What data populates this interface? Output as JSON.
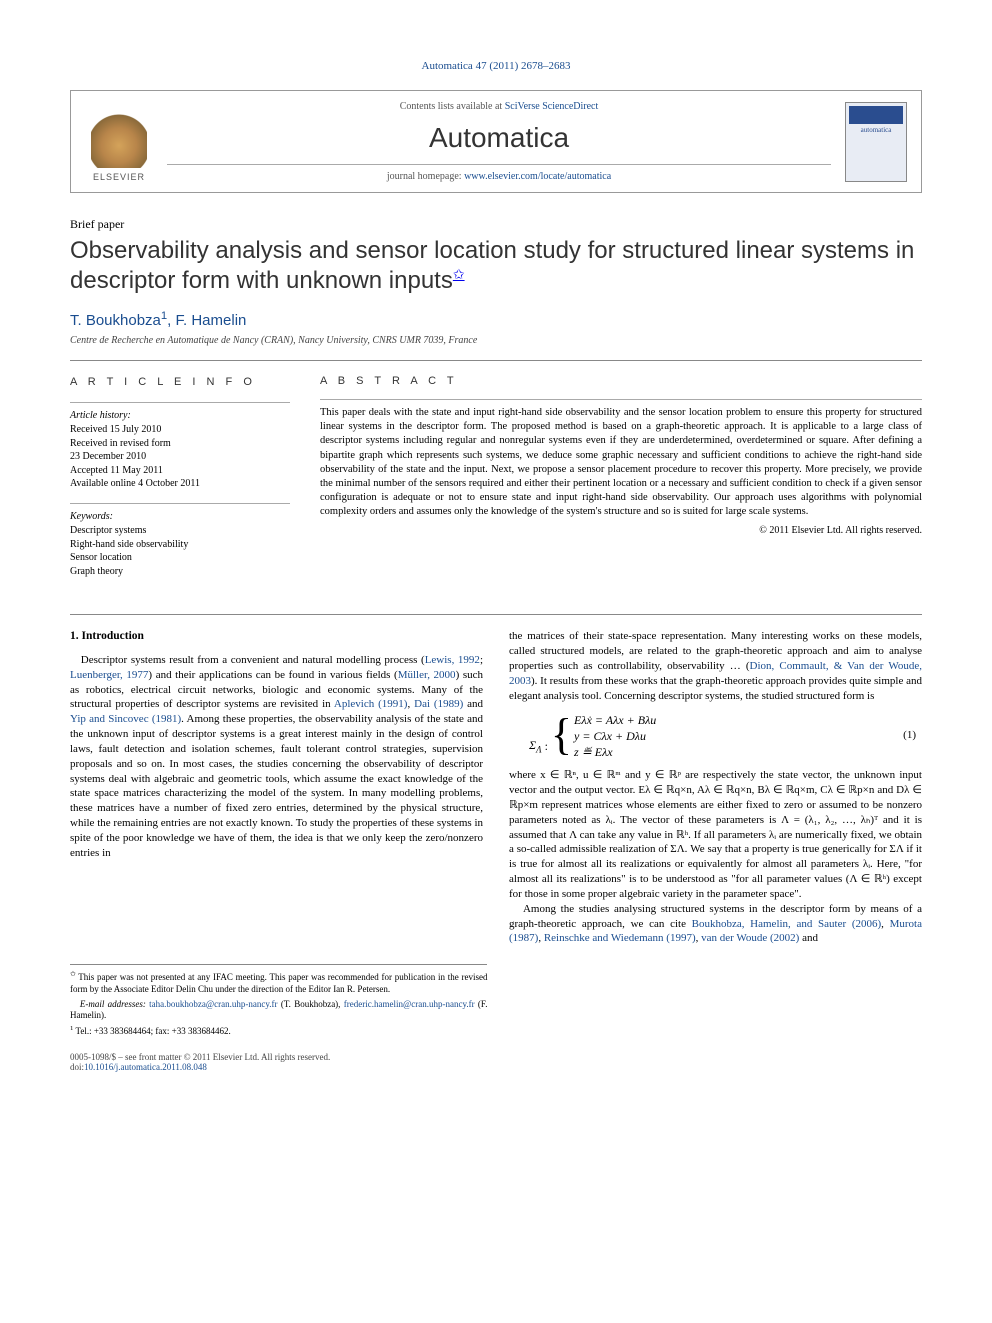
{
  "running_head": {
    "journal_link_text": "Automatica 47 (2011) 2678–2683",
    "journal_link_color": "#1a4d8f"
  },
  "header": {
    "elsevier_label": "ELSEVIER",
    "contents_prefix": "Contents lists available at ",
    "contents_link": "SciVerse ScienceDirect",
    "journal_name": "Automatica",
    "homepage_prefix": "journal homepage: ",
    "homepage_link": "www.elsevier.com/locate/automatica",
    "cover_title": "automatica"
  },
  "article": {
    "section_label": "Brief paper",
    "title": "Observability analysis and sensor location study for structured linear systems in descriptor form with unknown inputs",
    "title_marker": "✩",
    "authors_html": "T. Boukhobza",
    "author1": "T. Boukhobza",
    "author1_sup": "1",
    "author_sep": ", ",
    "author2": "F. Hamelin",
    "affiliation": "Centre de Recherche en Automatique de Nancy (CRAN), Nancy University, CNRS UMR 7039, France"
  },
  "info": {
    "heading": "A R T I C L E   I N F O",
    "history_label": "Article history:",
    "received": "Received 15 July 2010",
    "revised_label": "Received in revised form",
    "revised_date": "23 December 2010",
    "accepted": "Accepted 11 May 2011",
    "online": "Available online 4 October 2011",
    "keywords_label": "Keywords:",
    "kw1": "Descriptor systems",
    "kw2": "Right-hand side observability",
    "kw3": "Sensor location",
    "kw4": "Graph theory"
  },
  "abstract": {
    "heading": "A B S T R A C T",
    "text": "This paper deals with the state and input right-hand side observability and the sensor location problem to ensure this property for structured linear systems in the descriptor form. The proposed method is based on a graph-theoretic approach. It is applicable to a large class of descriptor systems including regular and nonregular systems even if they are underdetermined, overdetermined or square. After defining a bipartite graph which represents such systems, we deduce some graphic necessary and sufficient conditions to achieve the right-hand side observability of the state and the input. Next, we propose a sensor placement procedure to recover this property. More precisely, we provide the minimal number of the sensors required and either their pertinent location or a necessary and sufficient condition to check if a given sensor configuration is adequate or not to ensure state and input right-hand side observability. Our approach uses algorithms with polynomial complexity orders and assumes only the knowledge of the system's structure and so is suited for large scale systems.",
    "copyright": "© 2011 Elsevier Ltd. All rights reserved."
  },
  "body": {
    "sec1_heading": "1. Introduction",
    "col1_p1a": "Descriptor systems result from a convenient and natural modelling process (",
    "ref_lewis": "Lewis, 1992",
    "sep1": "; ",
    "ref_luen": "Luenberger, 1977",
    "col1_p1b": ") and their applications can be found in various fields (",
    "ref_muller": "Müller, 2000",
    "col1_p1c": ") such as robotics, electrical circuit networks, biologic and economic systems. Many of the structural properties of descriptor systems are revisited in ",
    "ref_aplevich": "Aplevich (1991)",
    "sep_comma": ", ",
    "ref_dai": "Dai (1989)",
    "sep_and": " and ",
    "ref_yip": "Yip and Sincovec (1981)",
    "col1_p1d": ". Among these properties, the observability analysis of the state and the unknown input of descriptor systems is a great interest mainly in the design of control laws, fault detection and isolation schemes, fault tolerant control strategies, supervision proposals and so on. In most cases, the studies concerning the observability of descriptor systems deal with algebraic and geometric tools, which assume the exact knowledge of the state space matrices characterizing the model of the system. In many modelling problems, these matrices have a number of fixed zero entries, determined by the physical structure, while the remaining entries are not exactly known. To study the properties of these systems in spite of the poor knowledge we have of them, the idea is that we only keep the zero/nonzero entries in",
    "col2_p1a": "the matrices of their state-space representation. Many interesting works on these models, called structured models, are related to the graph-theoretic approach and aim to analyse properties such as controllability, observability … (",
    "ref_dion": "Dion, Commault, & Van der Woude, 2003",
    "col2_p1b": "). It results from these works that the graph-theoretic approach provides quite simple and elegant analysis tool. Concerning descriptor systems, the studied structured form is",
    "eq_label": "Σ",
    "eq_sub": "Λ",
    "eq_line1": "Eλẋ = Aλx + Bλu",
    "eq_line2": "y = Cλx + Dλu",
    "eq_line3": "z ≝ Eλx",
    "eq_num": "(1)",
    "col2_p2a": "where x ∈ ℝⁿ,  u ∈ ℝᵐ and y ∈ ℝᵖ are respectively the state vector, the unknown input vector and the output vector. Eλ ∈ ℝq×n, Aλ ∈ ℝq×n, Bλ ∈ ℝq×m, Cλ ∈ ℝp×n and Dλ ∈ ℝp×m represent matrices whose elements are either fixed to zero or assumed to be nonzero parameters noted as λᵢ. The vector of these parameters is Λ = (λ₁, λ₂, …, λₕ)ᵀ and it is assumed that Λ can take any value in ℝʰ. If all parameters λᵢ are numerically fixed, we obtain a so-called admissible realization of ΣΛ. We say that a property is true generically for ΣΛ if it is true for almost all its realizations or equivalently for almost all parameters λᵢ. Here, \"for almost all its realizations\" is to be understood as \"for all parameter values (Λ ∈ ℝʰ) except for those in some proper algebraic variety in the parameter space\".",
    "col2_p3a": "Among the studies analysing structured systems in the descriptor form by means of a graph-theoretic approach, we can cite ",
    "ref_bouk": "Boukhobza, Hamelin, and Sauter (2006)",
    "ref_murota": "Murota (1987)",
    "ref_rein": "Reinschke and Wiedemann (1997)",
    "ref_vdw": "van der Woude (2002)",
    "col2_p3b": " and"
  },
  "footnotes": {
    "star_prefix": "✩",
    "star_text": " This paper was not presented at any IFAC meeting. This paper was recommended for publication in the revised form by the Associate Editor Delin Chu under the direction of the Editor Ian R. Petersen.",
    "email_label": "E-mail addresses: ",
    "email1": "taha.boukhobza@cran.uhp-nancy.fr",
    "email1_who": " (T. Boukhobza), ",
    "email2": "frederic.hamelin@cran.uhp-nancy.fr",
    "email2_who": " (F. Hamelin).",
    "tel_sup": "1",
    "tel_text": " Tel.: +33 383684464; fax: +33 383684462."
  },
  "footer": {
    "left1": "0005-1098/$ – see front matter © 2011 Elsevier Ltd. All rights reserved.",
    "doi_prefix": "doi:",
    "doi": "10.1016/j.automatica.2011.08.048"
  },
  "colors": {
    "link": "#1a4d8f",
    "rule": "#888888",
    "text": "#000000"
  }
}
